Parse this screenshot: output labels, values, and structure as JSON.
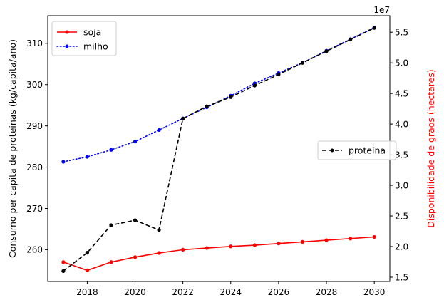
{
  "chart_data": {
    "type": "line",
    "x": [
      2017,
      2018,
      2019,
      2020,
      2021,
      2022,
      2023,
      2024,
      2025,
      2026,
      2027,
      2028,
      2029,
      2030
    ],
    "left_axis": {
      "label": "Consumo per capita de proteínas (kg/capita/ano)",
      "label_color": "#000000",
      "ylim": [
        252.3,
        316.7
      ],
      "ticks": [
        260,
        270,
        280,
        290,
        300,
        310
      ]
    },
    "right_axis": {
      "label": "Disponibilidade de graos (hectares)",
      "label_color": "#ff0000",
      "offset_text": "1e7",
      "ylim": [
        1.43,
        5.77
      ],
      "ticks": [
        1.5,
        2.0,
        2.5,
        3.0,
        3.5,
        4.0,
        4.5,
        5.0,
        5.5
      ],
      "tick_labels": [
        "1.5",
        "2.0",
        "2.5",
        "3.0",
        "3.5",
        "4.0",
        "4.5",
        "5.0",
        "5.5"
      ]
    },
    "xlim": [
      2016.35,
      2030.65
    ],
    "x_ticks": [
      2018,
      2020,
      2022,
      2024,
      2026,
      2028,
      2030
    ],
    "series": [
      {
        "name": "soja",
        "axis": "left",
        "color": "#ff0000",
        "style": "solid",
        "values": [
          257.0,
          255.0,
          257.0,
          258.2,
          259.2,
          260.0,
          260.4,
          260.8,
          261.1,
          261.5,
          261.9,
          262.3,
          262.7,
          263.1
        ]
      },
      {
        "name": "milho",
        "axis": "left",
        "color": "#0000ff",
        "style": "dotted",
        "values": [
          281.3,
          282.5,
          284.2,
          286.2,
          289.0,
          291.8,
          294.5,
          297.3,
          300.3,
          302.8,
          305.3,
          308.2,
          311.0,
          313.8
        ]
      },
      {
        "name": "proteina",
        "axis": "right",
        "color": "#000000",
        "style": "dashed",
        "values": [
          1.6,
          1.9,
          2.35,
          2.43,
          2.27,
          4.09,
          4.29,
          4.44,
          4.63,
          4.81,
          5.0,
          5.19,
          5.38,
          5.57
        ]
      }
    ],
    "legends": [
      {
        "placement": "upper-left",
        "entries": [
          "soja",
          "milho"
        ]
      },
      {
        "placement": "center-right",
        "entries": [
          "proteina"
        ]
      }
    ],
    "grid": false
  }
}
